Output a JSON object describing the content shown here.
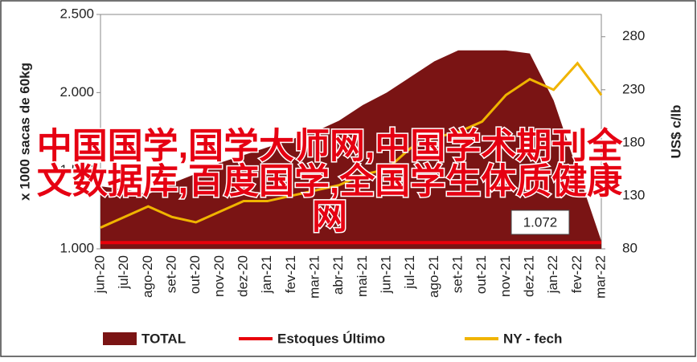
{
  "chart_data": {
    "type": "area-line",
    "y_label": "x 1000 sacas de 60kg",
    "y2_label": "US$ c/lb",
    "categories": [
      "jun-20",
      "jul-20",
      "ago-20",
      "set-20",
      "out-20",
      "nov-20",
      "dez-20",
      "jan-21",
      "fev-21",
      "mar-21",
      "abr-21",
      "mai-21",
      "jun-21",
      "jul-21",
      "ago-21",
      "set-21",
      "out-21",
      "nov-21",
      "dez-21",
      "jan-22",
      "fev-22",
      "mar-22"
    ],
    "series": [
      {
        "name": "TOTAL",
        "kind": "area",
        "color": "#7a1414",
        "values": [
          1.4,
          1.38,
          1.35,
          1.42,
          1.48,
          1.55,
          1.6,
          1.65,
          1.7,
          1.75,
          1.82,
          1.92,
          2.0,
          2.1,
          2.2,
          2.27,
          2.27,
          2.27,
          2.25,
          1.95,
          1.5,
          1.05
        ]
      },
      {
        "name": "Estoques Último",
        "kind": "line",
        "color": "#e8000b",
        "values": [
          1.04,
          1.04,
          1.04,
          1.04,
          1.04,
          1.04,
          1.04,
          1.04,
          1.04,
          1.04,
          1.04,
          1.04,
          1.04,
          1.04,
          1.04,
          1.04,
          1.04,
          1.04,
          1.04,
          1.04,
          1.04,
          1.04
        ]
      },
      {
        "name": "NY - fech",
        "kind": "line",
        "axis": "y2",
        "color": "#f0b400",
        "values": [
          100,
          110,
          120,
          110,
          105,
          115,
          125,
          125,
          130,
          135,
          140,
          150,
          155,
          175,
          185,
          190,
          200,
          225,
          240,
          230,
          255,
          225
        ]
      }
    ],
    "annotation": "1.072",
    "ylim": [
      1,
      2.5
    ],
    "yticks": [
      {
        "value": 1,
        "label": "1.000"
      },
      {
        "value": 1.5,
        "label": "1.500"
      },
      {
        "value": 2,
        "label": "2.000"
      },
      {
        "value": 2.5,
        "label": "2.500"
      }
    ],
    "y2lim": [
      80,
      301
    ],
    "y2ticks": [
      80,
      130,
      180,
      230,
      280
    ],
    "watermark": [
      "中国国学,国学大师网,中国学术期刊全",
      "文数据库,百度国学,全国学生体质健康",
      "网"
    ]
  }
}
